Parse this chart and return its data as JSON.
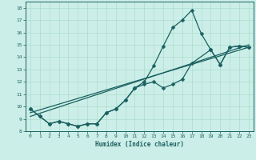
{
  "xlabel": "Humidex (Indice chaleur)",
  "xlim": [
    -0.5,
    23.5
  ],
  "ylim": [
    8,
    18.5
  ],
  "yticks": [
    8,
    9,
    10,
    11,
    12,
    13,
    14,
    15,
    16,
    17,
    18
  ],
  "xticks": [
    0,
    1,
    2,
    3,
    4,
    5,
    6,
    7,
    8,
    9,
    10,
    11,
    12,
    13,
    14,
    15,
    16,
    17,
    18,
    19,
    20,
    21,
    22,
    23
  ],
  "bg_color": "#cceee8",
  "line_color": "#1a6060",
  "grid_color": "#aaddcc",
  "line1": {
    "x": [
      0,
      1,
      2,
      3,
      4,
      5,
      6,
      7,
      8,
      9,
      10,
      11,
      12,
      13,
      14,
      15,
      16,
      17,
      18,
      19,
      20,
      21,
      22,
      23
    ],
    "y": [
      9.8,
      9.2,
      8.6,
      8.8,
      8.6,
      8.4,
      8.6,
      8.6,
      9.5,
      9.8,
      10.5,
      11.5,
      12.0,
      13.3,
      14.9,
      16.4,
      17.0,
      17.8,
      15.9,
      14.6,
      13.4,
      14.8,
      14.9,
      14.8
    ]
  },
  "line2": {
    "x": [
      0,
      1,
      2,
      3,
      4,
      5,
      6,
      7,
      8,
      9,
      10,
      11,
      12,
      13,
      14,
      15,
      16,
      17,
      19,
      20,
      21,
      22,
      23
    ],
    "y": [
      9.8,
      9.2,
      8.6,
      8.8,
      8.6,
      8.4,
      8.6,
      8.6,
      9.5,
      9.8,
      10.5,
      11.5,
      11.8,
      12.0,
      11.5,
      11.8,
      12.2,
      13.5,
      14.6,
      13.4,
      14.8,
      14.9,
      14.8
    ]
  },
  "line3": {
    "x": [
      0,
      23
    ],
    "y": [
      9.5,
      14.8
    ]
  },
  "line4": {
    "x": [
      0,
      23
    ],
    "y": [
      9.2,
      15.0
    ]
  }
}
